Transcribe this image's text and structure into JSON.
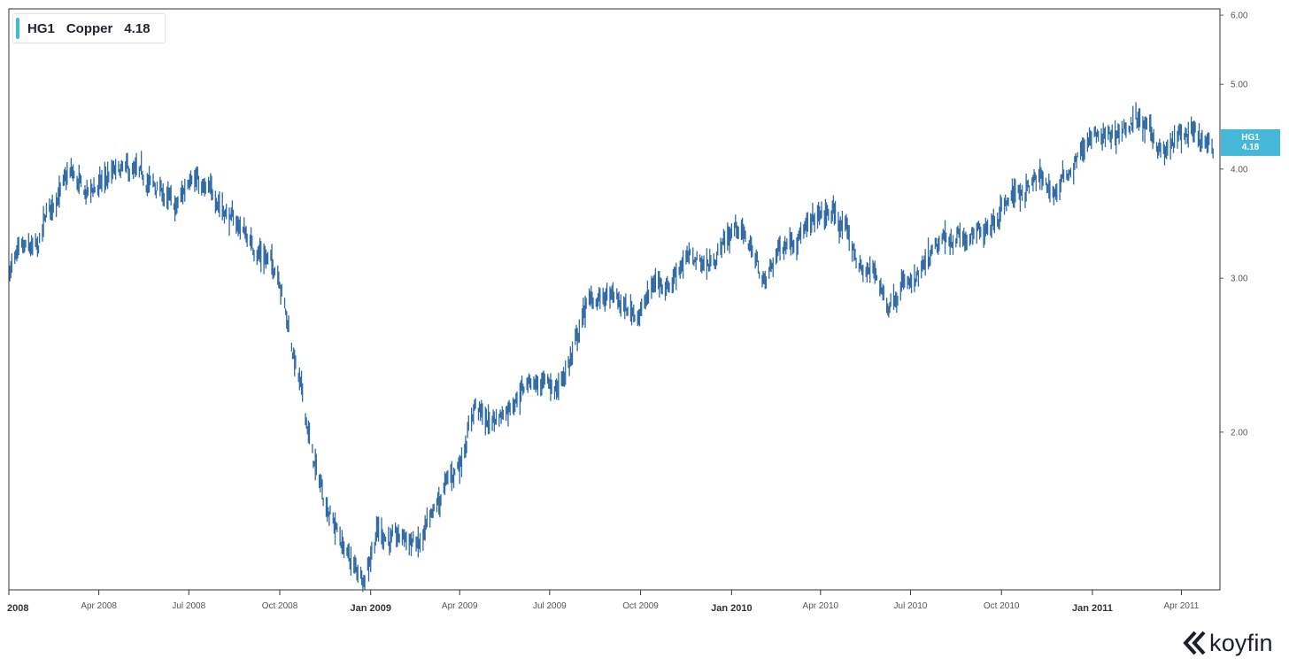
{
  "legend": {
    "ticker": "HG1",
    "name": "Copper",
    "value": "4.18"
  },
  "price_tag": {
    "ticker": "HG1",
    "value": "4.18"
  },
  "brand": {
    "name": "koyfin"
  },
  "colors": {
    "series": "#2f6aa6",
    "accent": "#45b8d8",
    "axis": "#333333"
  },
  "chart_data": {
    "type": "ohlc",
    "series": [
      {
        "name": "HG1 Copper"
      }
    ],
    "y_scale": "log",
    "ylim": [
      1.32,
      6.1
    ],
    "y_ticks": [
      "2.00",
      "3.00",
      "4.00",
      "5.00",
      "6.00"
    ],
    "x_ticks": [
      {
        "label": "2008",
        "date": "2008-01-01",
        "bold": true
      },
      {
        "label": "Apr 2008",
        "date": "2008-04-01",
        "bold": false
      },
      {
        "label": "Jul 2008",
        "date": "2008-07-01",
        "bold": false
      },
      {
        "label": "Oct 2008",
        "date": "2008-10-01",
        "bold": false
      },
      {
        "label": "Jan 2009",
        "date": "2009-01-01",
        "bold": true
      },
      {
        "label": "Apr 2009",
        "date": "2009-04-01",
        "bold": false
      },
      {
        "label": "Jul 2009",
        "date": "2009-07-01",
        "bold": false
      },
      {
        "label": "Oct 2009",
        "date": "2009-10-01",
        "bold": false
      },
      {
        "label": "Jan 2010",
        "date": "2010-01-01",
        "bold": true
      },
      {
        "label": "Apr 2010",
        "date": "2010-04-01",
        "bold": false
      },
      {
        "label": "Jul 2010",
        "date": "2010-07-01",
        "bold": false
      },
      {
        "label": "Oct 2010",
        "date": "2010-10-01",
        "bold": false
      },
      {
        "label": "Jan 2011",
        "date": "2011-01-01",
        "bold": true
      },
      {
        "label": "Apr 2011",
        "date": "2011-04-01",
        "bold": false
      }
    ],
    "x_range": [
      "2008-01-01",
      "2011-05-10"
    ],
    "close_path": [
      [
        "2008-01-02",
        3.08
      ],
      [
        "2008-01-15",
        3.22
      ],
      [
        "2008-01-31",
        3.24
      ],
      [
        "2008-02-08",
        3.55
      ],
      [
        "2008-02-20",
        3.75
      ],
      [
        "2008-03-04",
        3.95
      ],
      [
        "2008-03-18",
        3.75
      ],
      [
        "2008-03-31",
        3.82
      ],
      [
        "2008-04-15",
        3.95
      ],
      [
        "2008-04-30",
        3.98
      ],
      [
        "2008-05-13",
        3.92
      ],
      [
        "2008-05-23",
        3.85
      ],
      [
        "2008-06-05",
        3.75
      ],
      [
        "2008-06-18",
        3.6
      ],
      [
        "2008-06-30",
        3.85
      ],
      [
        "2008-07-03",
        4.0
      ],
      [
        "2008-07-15",
        3.78
      ],
      [
        "2008-07-31",
        3.7
      ],
      [
        "2008-08-12",
        3.5
      ],
      [
        "2008-08-22",
        3.45
      ],
      [
        "2008-09-05",
        3.25
      ],
      [
        "2008-09-19",
        3.15
      ],
      [
        "2008-09-30",
        3.05
      ],
      [
        "2008-10-07",
        2.75
      ],
      [
        "2008-10-15",
        2.45
      ],
      [
        "2008-10-24",
        2.2
      ],
      [
        "2008-11-04",
        1.85
      ],
      [
        "2008-11-18",
        1.65
      ],
      [
        "2008-12-02",
        1.5
      ],
      [
        "2008-12-15",
        1.4
      ],
      [
        "2008-12-26",
        1.37
      ],
      [
        "2009-01-08",
        1.55
      ],
      [
        "2009-01-22",
        1.5
      ],
      [
        "2009-02-05",
        1.52
      ],
      [
        "2009-02-19",
        1.48
      ],
      [
        "2009-03-05",
        1.6
      ],
      [
        "2009-03-19",
        1.75
      ],
      [
        "2009-04-02",
        1.85
      ],
      [
        "2009-04-16",
        2.15
      ],
      [
        "2009-04-30",
        2.05
      ],
      [
        "2009-05-14",
        2.1
      ],
      [
        "2009-05-29",
        2.2
      ],
      [
        "2009-06-12",
        2.3
      ],
      [
        "2009-06-26",
        2.25
      ],
      [
        "2009-07-10",
        2.25
      ],
      [
        "2009-07-24",
        2.45
      ],
      [
        "2009-08-07",
        2.8
      ],
      [
        "2009-08-21",
        2.85
      ],
      [
        "2009-09-04",
        2.85
      ],
      [
        "2009-09-18",
        2.75
      ],
      [
        "2009-10-02",
        2.75
      ],
      [
        "2009-10-16",
        2.98
      ],
      [
        "2009-10-30",
        2.95
      ],
      [
        "2009-11-13",
        3.15
      ],
      [
        "2009-11-27",
        3.15
      ],
      [
        "2009-12-11",
        3.1
      ],
      [
        "2009-12-24",
        3.3
      ],
      [
        "2010-01-07",
        3.45
      ],
      [
        "2010-01-21",
        3.25
      ],
      [
        "2010-02-04",
        2.95
      ],
      [
        "2010-02-18",
        3.25
      ],
      [
        "2010-03-04",
        3.35
      ],
      [
        "2010-03-18",
        3.4
      ],
      [
        "2010-04-01",
        3.55
      ],
      [
        "2010-04-15",
        3.55
      ],
      [
        "2010-04-29",
        3.35
      ],
      [
        "2010-05-13",
        3.05
      ],
      [
        "2010-05-27",
        3.05
      ],
      [
        "2010-06-08",
        2.8
      ],
      [
        "2010-06-22",
        2.95
      ],
      [
        "2010-07-06",
        2.95
      ],
      [
        "2010-07-20",
        3.15
      ],
      [
        "2010-08-03",
        3.3
      ],
      [
        "2010-08-17",
        3.35
      ],
      [
        "2010-08-31",
        3.3
      ],
      [
        "2010-09-14",
        3.45
      ],
      [
        "2010-09-28",
        3.55
      ],
      [
        "2010-10-12",
        3.75
      ],
      [
        "2010-10-26",
        3.8
      ],
      [
        "2010-11-09",
        3.9
      ],
      [
        "2010-11-23",
        3.75
      ],
      [
        "2010-12-07",
        3.95
      ],
      [
        "2010-12-21",
        4.2
      ],
      [
        "2011-01-04",
        4.35
      ],
      [
        "2011-01-18",
        4.35
      ],
      [
        "2011-02-01",
        4.45
      ],
      [
        "2011-02-15",
        4.55
      ],
      [
        "2011-03-01",
        4.4
      ],
      [
        "2011-03-15",
        4.15
      ],
      [
        "2011-03-29",
        4.35
      ],
      [
        "2011-04-12",
        4.38
      ],
      [
        "2011-04-26",
        4.25
      ],
      [
        "2011-05-03",
        4.18
      ]
    ]
  }
}
